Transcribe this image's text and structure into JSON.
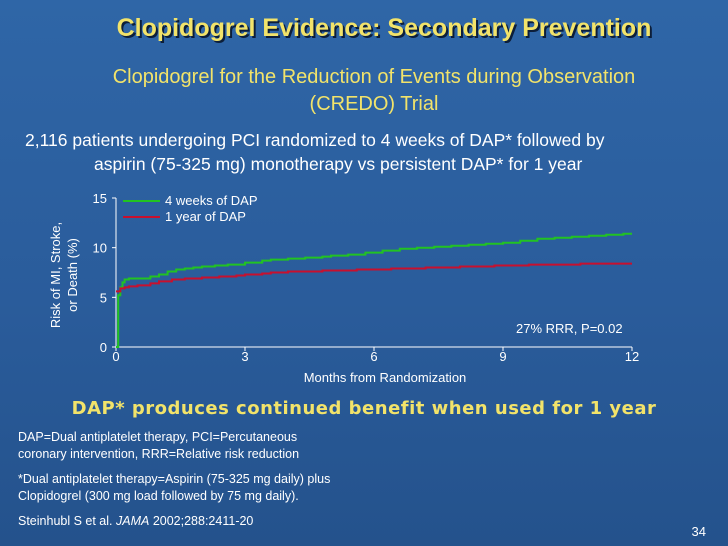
{
  "slide": {
    "title": "Clopidogrel Evidence: Secondary Prevention",
    "subtitle_line1": "Clopidogrel for the Reduction of Events during Observation",
    "subtitle_line2": "(CREDO) Trial",
    "description_line1": "2,116 patients undergoing PCI randomized to 4 weeks of DAP* followed by",
    "description_line2": "aspirin (75-325 mg) monotherapy vs persistent DAP* for 1 year",
    "conclusion": "DAP* produces continued benefit when used for 1 year",
    "footnote1_line1": "DAP=Dual antiplatelet therapy, PCI=Percutaneous",
    "footnote1_line2": "coronary intervention, RRR=Relative risk reduction",
    "footnote2_line1": "*Dual antiplatelet therapy=Aspirin (75-325 mg daily) plus",
    "footnote2_line2": "Clopidogrel (300 mg load followed by 75 mg daily).",
    "citation_authors": "Steinhubl S et al.",
    "citation_journal": "JAMA",
    "citation_rest": "2002;288:2411-20",
    "page_number": "34"
  },
  "colors": {
    "background": "#2a5c9b",
    "title": "#f2e36a",
    "series_4wk": "#22c322",
    "series_1yr": "#c8102e"
  },
  "chart_data": {
    "type": "line",
    "title": "",
    "xlabel": "Months from Randomization",
    "ylabel": "Risk of MI, Stroke, or Death (%)",
    "ylabel_line1": "Risk of MI, Stroke,",
    "ylabel_line2": "or Death (%)",
    "xlim": [
      0,
      12
    ],
    "ylim": [
      0,
      15
    ],
    "x_ticks": [
      0,
      3,
      6,
      9,
      12
    ],
    "y_ticks": [
      0,
      5,
      10,
      15
    ],
    "legend_position": "top-left",
    "annotation": "27% RRR, P=0.02",
    "series": [
      {
        "name": "4 weeks of DAP",
        "color": "#22c322",
        "x": [
          0,
          0.05,
          0.1,
          0.15,
          0.2,
          0.3,
          0.5,
          0.8,
          1.0,
          1.2,
          1.4,
          1.6,
          1.8,
          2.0,
          2.3,
          2.6,
          3.0,
          3.4,
          3.6,
          4.0,
          4.4,
          4.8,
          5.0,
          5.4,
          5.8,
          6.2,
          6.6,
          7.0,
          7.4,
          7.8,
          8.2,
          8.6,
          9.0,
          9.4,
          9.8,
          10.2,
          10.6,
          11.0,
          11.4,
          11.8,
          12.0
        ],
        "y": [
          0,
          5.2,
          6.0,
          6.5,
          6.8,
          6.9,
          6.9,
          7.1,
          7.3,
          7.6,
          7.8,
          7.9,
          8.0,
          8.1,
          8.2,
          8.3,
          8.5,
          8.7,
          8.8,
          8.9,
          9.0,
          9.1,
          9.2,
          9.3,
          9.5,
          9.7,
          9.9,
          10.0,
          10.1,
          10.2,
          10.3,
          10.4,
          10.5,
          10.7,
          10.9,
          11.0,
          11.1,
          11.2,
          11.3,
          11.4,
          11.4
        ]
      },
      {
        "name": "1 year of DAP",
        "color": "#c8102e",
        "x": [
          0,
          0.1,
          0.2,
          0.3,
          0.5,
          0.8,
          1.0,
          1.3,
          1.6,
          2.0,
          2.4,
          2.8,
          3.0,
          3.4,
          3.6,
          4.0,
          4.4,
          4.8,
          5.2,
          5.6,
          6.0,
          6.4,
          6.8,
          7.2,
          7.6,
          8.0,
          8.4,
          8.8,
          9.2,
          9.6,
          10.0,
          10.4,
          10.8,
          11.2,
          11.6,
          12.0
        ],
        "y": [
          5.6,
          5.9,
          6.0,
          6.1,
          6.2,
          6.4,
          6.6,
          6.8,
          6.9,
          7.0,
          7.1,
          7.2,
          7.3,
          7.4,
          7.5,
          7.6,
          7.6,
          7.7,
          7.7,
          7.8,
          7.8,
          7.9,
          7.9,
          8.0,
          8.0,
          8.1,
          8.1,
          8.2,
          8.2,
          8.3,
          8.3,
          8.3,
          8.4,
          8.4,
          8.4,
          8.4
        ]
      }
    ]
  }
}
